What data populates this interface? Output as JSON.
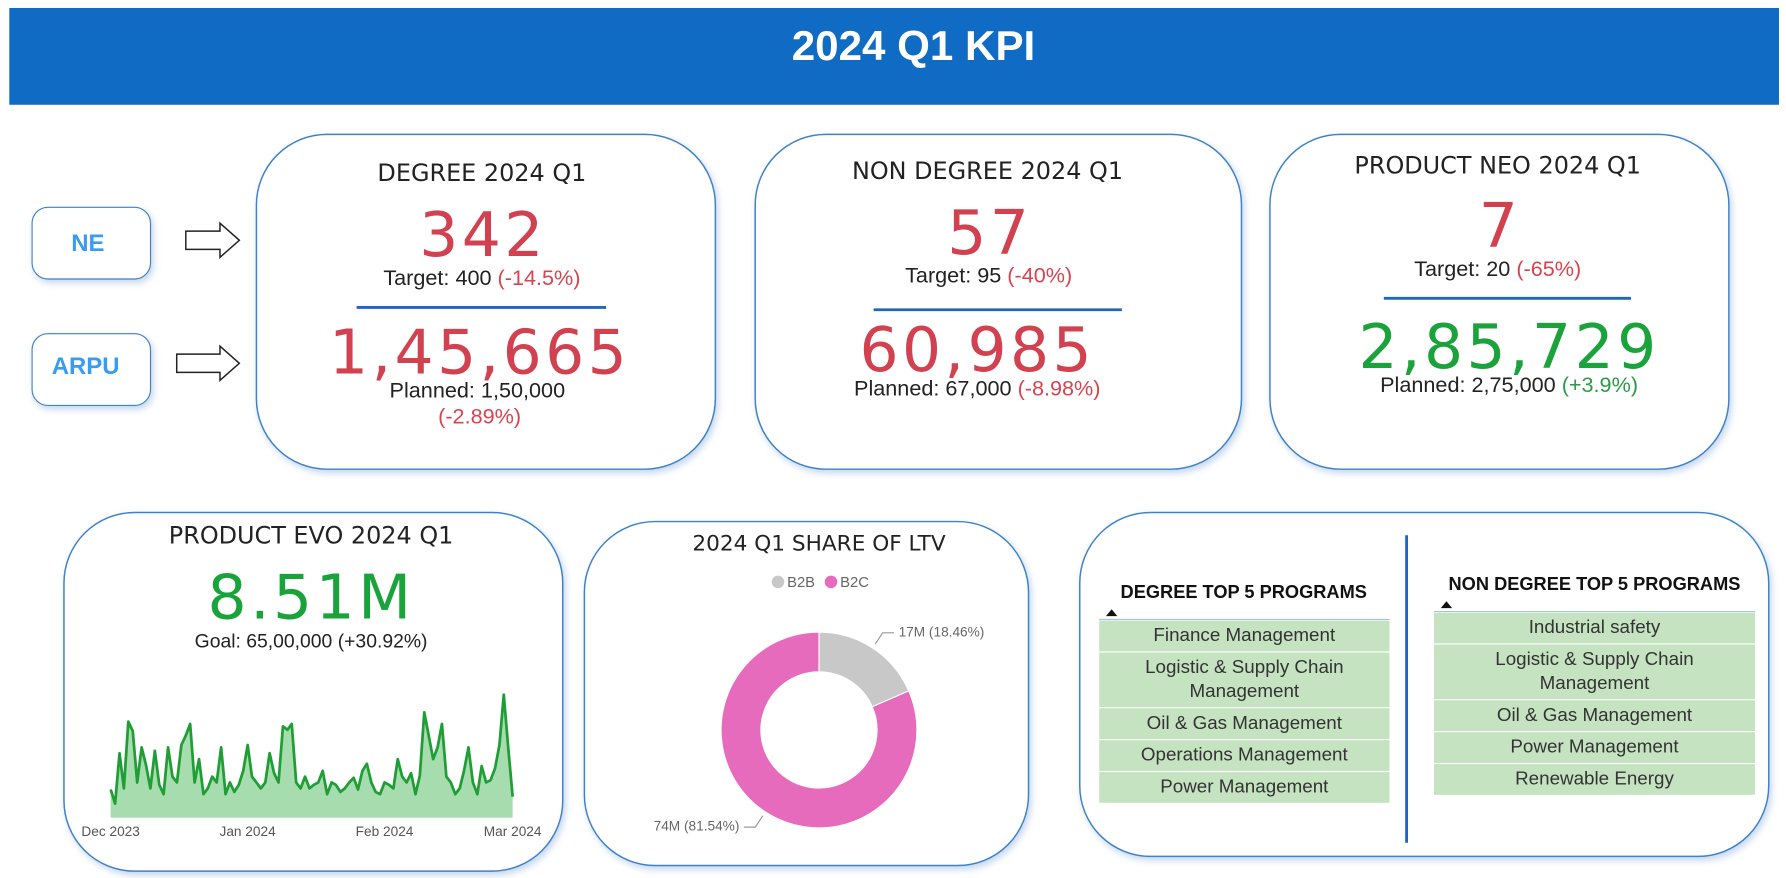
{
  "header": {
    "title": "2024 Q1 KPI"
  },
  "row_labels": [
    "NE",
    "ARPU"
  ],
  "cards": [
    {
      "title": "DEGREE 2024 Q1",
      "ne": "342",
      "target": "Target: 400",
      "target_change": "(-14.5%)",
      "arpu": "1,45,665",
      "planned": "Planned: 1,50,000",
      "planned_change": "(-2.89%)"
    },
    {
      "title": "NON DEGREE 2024 Q1",
      "ne": "57",
      "target": "Target: 95",
      "target_change": "(-40%)",
      "arpu": "60,985",
      "planned": "Planned: 67,000",
      "planned_change": "(-8.98%)"
    },
    {
      "title": "PRODUCT NEO 2024 Q1",
      "ne": "7",
      "target": "Target: 20",
      "target_change": "(-65%)",
      "arpu": "2,85,729",
      "planned": "Planned: 2,75,000",
      "planned_change": "(+3.9%)"
    }
  ],
  "evo": {
    "title": "PRODUCT EVO 2024 Q1",
    "value": "8.51M",
    "goal": "Goal: 65,00,000",
    "goal_change": "(+30.92%)"
  },
  "programs": [
    {
      "title": "DEGREE TOP 5 PROGRAMS",
      "items": [
        "Finance Management",
        "Logistic & Supply Chain Management",
        "Oil & Gas Management",
        "Operations Management",
        "Power Management"
      ]
    },
    {
      "title": "NON DEGREE TOP 5 PROGRAMS",
      "items": [
        "Industrial safety",
        "Logistic & Supply Chain Management",
        "Oil & Gas Management",
        "Power Management",
        "Renewable Energy"
      ]
    }
  ],
  "chart_data": [
    {
      "type": "area",
      "color": "#1f9e35",
      "categories": [
        "Dec 2023",
        null,
        null,
        null,
        null,
        null,
        null,
        null,
        null,
        null,
        null,
        null,
        null,
        null,
        null,
        null,
        null,
        null,
        null,
        null,
        null,
        null,
        null,
        null,
        null,
        null,
        null,
        null,
        null,
        null,
        null,
        "Jan 2024",
        null,
        null,
        null,
        null,
        null,
        null,
        null,
        null,
        null,
        null,
        null,
        null,
        null,
        null,
        null,
        null,
        null,
        null,
        null,
        null,
        null,
        null,
        null,
        null,
        null,
        null,
        null,
        null,
        null,
        null,
        "Feb 2024",
        null,
        null,
        null,
        null,
        null,
        null,
        null,
        null,
        null,
        null,
        null,
        null,
        null,
        null,
        null,
        null,
        null,
        null,
        null,
        null,
        null,
        null,
        null,
        null,
        null,
        null,
        null,
        null,
        "Mar 2024"
      ],
      "values": [
        24,
        12,
        55,
        25,
        82,
        74,
        30,
        60,
        45,
        25,
        57,
        28,
        20,
        60,
        35,
        30,
        62,
        70,
        80,
        30,
        50,
        20,
        25,
        35,
        30,
        60,
        20,
        30,
        22,
        28,
        40,
        62,
        35,
        30,
        25,
        30,
        55,
        38,
        30,
        78,
        75,
        80,
        30,
        25,
        35,
        25,
        28,
        30,
        40,
        20,
        30,
        28,
        22,
        25,
        30,
        34,
        24,
        40,
        46,
        30,
        22,
        20,
        30,
        28,
        25,
        50,
        35,
        30,
        38,
        20,
        36,
        90,
        70,
        50,
        60,
        80,
        35,
        30,
        20,
        25,
        40,
        60,
        30,
        20,
        44,
        30,
        32,
        42,
        62,
        105,
        60,
        18
      ]
    },
    {
      "type": "pie",
      "title": "2024 Q1 SHARE OF LTV",
      "categories": [
        "B2B",
        "B2C"
      ],
      "values": [
        18.46,
        81.54
      ],
      "value_labels": [
        "17M (18.46%)",
        "74M (81.54%)"
      ],
      "colors": [
        "#c8c8c8",
        "#e66bbd"
      ],
      "legend": "top"
    }
  ]
}
